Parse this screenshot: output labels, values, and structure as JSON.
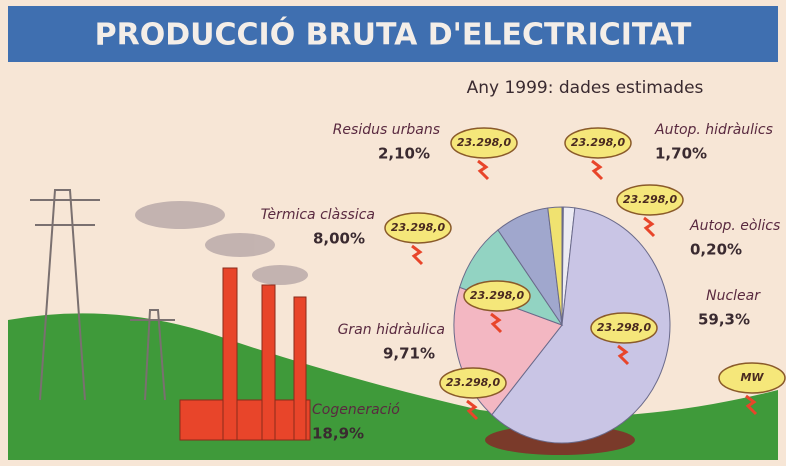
{
  "chart_data": {
    "type": "pie",
    "title": "PRODUCCIÓ BRUTA D'ELECTRICITAT",
    "subtitle": "Any 1999: dades estimades",
    "unit": "MW",
    "categories": [
      "Autop. eòlics",
      "Autop. hidràulics",
      "Nuclear",
      "Cogeneració",
      "Gran hidràulica",
      "Tèrmica clàssica",
      "Residus urbans"
    ],
    "values": [
      0.2,
      1.7,
      59.3,
      18.9,
      9.71,
      8.0,
      2.1
    ],
    "value_labels": [
      "0,20%",
      "1,70%",
      "59,3%",
      "18,9%",
      "9,71%",
      "8,00%",
      "2,10%"
    ],
    "badges": [
      "23.298,0",
      "23.298,0",
      "23.298,0",
      "23.298,0",
      "23.298,0",
      "23.298,0",
      "23.298,0"
    ],
    "colors": [
      "#5f6f9f",
      "#ecebf3",
      "#c9c5e5",
      "#f3b7c2",
      "#92d3c2",
      "#a0a7cd",
      "#f0e270"
    ]
  }
}
